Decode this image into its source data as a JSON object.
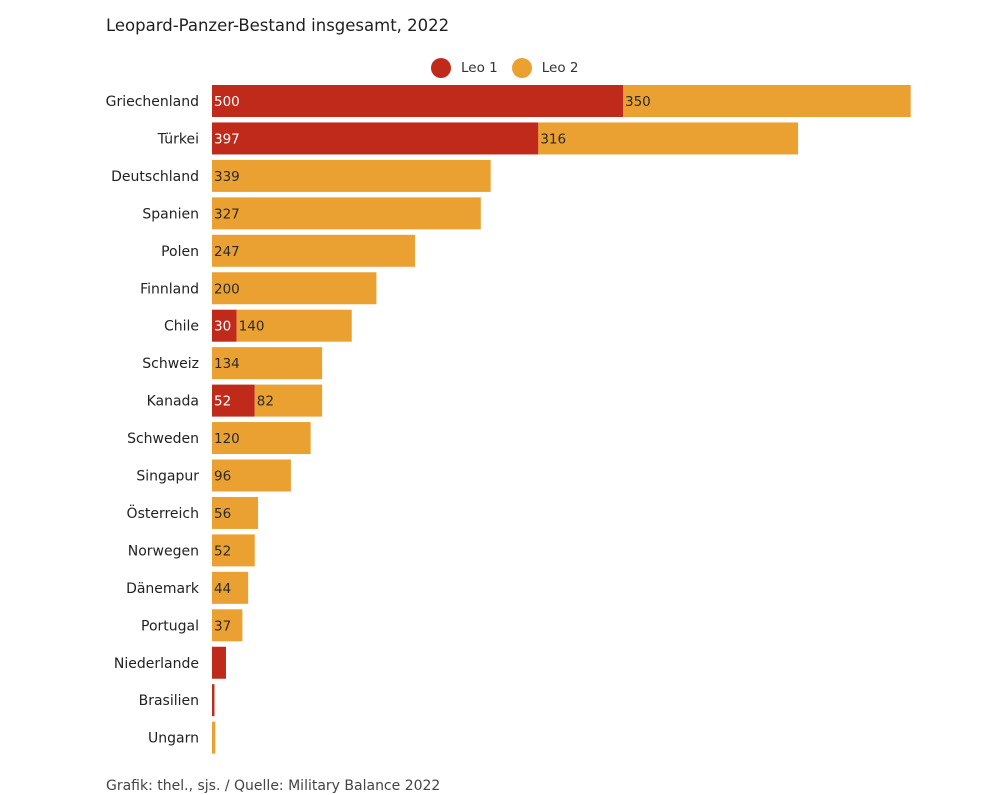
{
  "colors": {
    "leo1": "#bf2a1b",
    "leo2": "#eba032",
    "label_on_leo1": "#ffffff",
    "label_on_leo2": "#2b2b2b",
    "category_label": "#222222"
  },
  "chart_data": {
    "type": "bar",
    "orientation": "horizontal",
    "stacked": true,
    "title": "Leopard-Panzer-Bestand insgesamt, 2022",
    "xlabel": "",
    "ylabel": "",
    "grid": false,
    "legend_position": "top",
    "categories": [
      "Griechenland",
      "Türkei",
      "Deutschland",
      "Spanien",
      "Polen",
      "Finnland",
      "Chile",
      "Schweiz",
      "Kanada",
      "Schweden",
      "Singapur",
      "Österreich",
      "Norwegen",
      "Dänemark",
      "Portugal",
      "Niederlande",
      "Brasilien",
      "Ungarn"
    ],
    "series": [
      {
        "name": "Leo 1",
        "color_key": "leo1",
        "values": [
          500,
          397,
          0,
          0,
          0,
          0,
          30,
          0,
          52,
          0,
          0,
          0,
          0,
          0,
          0,
          17,
          3,
          0
        ]
      },
      {
        "name": "Leo 2",
        "color_key": "leo2",
        "values": [
          350,
          316,
          339,
          327,
          247,
          200,
          140,
          134,
          82,
          120,
          96,
          56,
          52,
          44,
          37,
          0,
          0,
          4
        ]
      }
    ],
    "data_labels": [
      [
        "500",
        "397",
        "",
        "",
        "",
        "",
        "30",
        "",
        "52",
        "",
        "",
        "",
        "",
        "",
        "",
        "",
        "",
        ""
      ],
      [
        "350",
        "316",
        "339",
        "327",
        "247",
        "200",
        "140",
        "134",
        "82",
        "120",
        "96",
        "56",
        "52",
        "44",
        "37",
        "",
        "",
        ""
      ]
    ]
  },
  "source_note": "Grafik: thel., sjs. / Quelle: Military Balance 2022"
}
